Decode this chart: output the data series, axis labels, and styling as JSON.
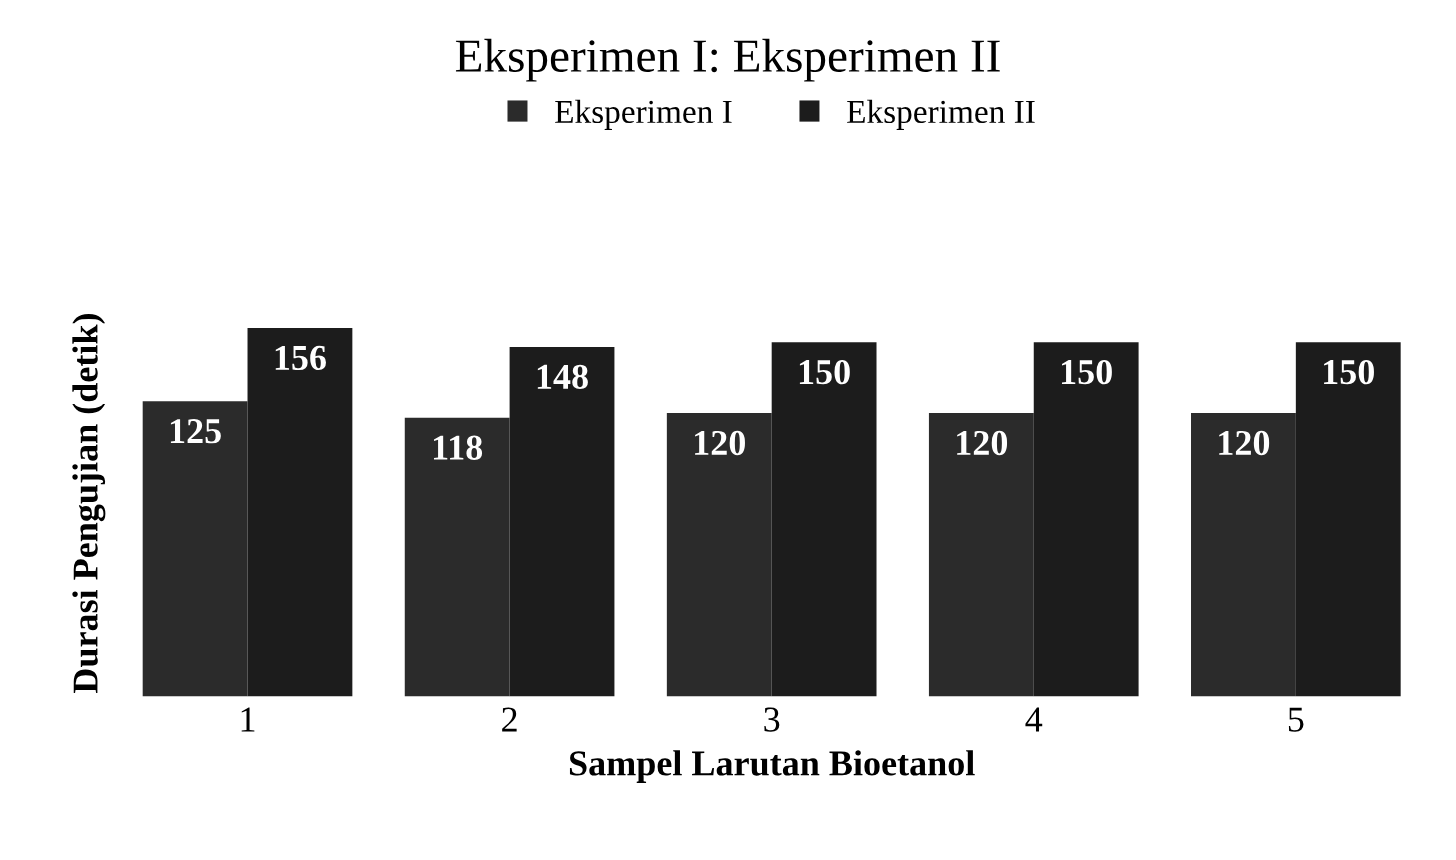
{
  "chart_data": {
    "type": "bar",
    "title": "Eksperimen I: Eksperimen II",
    "xlabel": "Sampel Larutan Bioetanol",
    "ylabel": "Durasi Pengujian (detik)",
    "categories": [
      "1",
      "2",
      "3",
      "4",
      "5"
    ],
    "series": [
      {
        "name": "Eksperimen I",
        "color": "#2b2b2b",
        "values": [
          125,
          118,
          120,
          120,
          120
        ]
      },
      {
        "name": "Eksperimen II",
        "color": "#1c1c1c",
        "values": [
          156,
          148,
          150,
          150,
          150
        ]
      }
    ],
    "data_labels": true,
    "legend": "top",
    "grid": false
  }
}
